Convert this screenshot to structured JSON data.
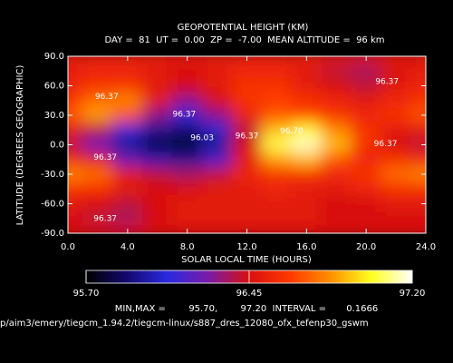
{
  "chart_data": {
    "type": "heatmap",
    "title": "GEOPOTENTIAL HEIGHT (KM)",
    "subtitle": "DAY =  81  UT =  0.00  ZP =  -7.00  MEAN ALTITUDE =  96 km",
    "xlabel": "SOLAR LOCAL TIME (HOURS)",
    "ylabel": "LATITUDE (DEGREES GEOGRAPHIC)",
    "x": [
      0,
      2,
      4,
      6,
      8,
      10,
      12,
      14,
      16,
      18,
      20,
      22,
      24
    ],
    "y": [
      90,
      75,
      60,
      45,
      30,
      15,
      0,
      -15,
      -30,
      -45,
      -60,
      -75,
      -90
    ],
    "z": [
      [
        96.5,
        96.5,
        96.5,
        96.5,
        96.5,
        96.5,
        96.5,
        96.5,
        96.5,
        96.5,
        96.5,
        96.5,
        96.5
      ],
      [
        96.5,
        96.55,
        96.55,
        96.5,
        96.45,
        96.5,
        96.55,
        96.55,
        96.5,
        96.4,
        96.35,
        96.45,
        96.5
      ],
      [
        96.55,
        96.6,
        96.6,
        96.5,
        96.45,
        96.5,
        96.6,
        96.6,
        96.5,
        96.45,
        96.4,
        96.5,
        96.55
      ],
      [
        96.6,
        96.75,
        96.8,
        96.5,
        96.3,
        96.45,
        96.6,
        96.65,
        96.6,
        96.55,
        96.5,
        96.55,
        96.6
      ],
      [
        96.7,
        96.85,
        96.7,
        96.3,
        96.1,
        96.3,
        96.55,
        96.7,
        96.65,
        96.6,
        96.55,
        96.6,
        96.7
      ],
      [
        96.5,
        96.4,
        96.1,
        95.95,
        95.9,
        96.05,
        96.4,
        96.9,
        97.0,
        96.8,
        96.6,
        96.5,
        96.5
      ],
      [
        96.4,
        96.2,
        95.95,
        95.8,
        95.75,
        95.95,
        96.45,
        97.05,
        97.15,
        96.9,
        96.6,
        96.45,
        96.4
      ],
      [
        96.55,
        96.5,
        96.2,
        96.0,
        95.95,
        96.15,
        96.5,
        96.85,
        96.9,
        96.7,
        96.55,
        96.6,
        96.55
      ],
      [
        96.8,
        96.75,
        96.5,
        96.4,
        96.35,
        96.4,
        96.55,
        96.6,
        96.6,
        96.55,
        96.6,
        96.75,
        96.8
      ],
      [
        96.6,
        96.6,
        96.5,
        96.45,
        96.45,
        96.5,
        96.5,
        96.55,
        96.5,
        96.5,
        96.55,
        96.6,
        96.6
      ],
      [
        96.5,
        96.45,
        96.4,
        96.45,
        96.5,
        96.5,
        96.5,
        96.5,
        96.5,
        96.45,
        96.45,
        96.5,
        96.5
      ],
      [
        96.45,
        96.4,
        96.35,
        96.45,
        96.5,
        96.5,
        96.5,
        96.5,
        96.5,
        96.45,
        96.45,
        96.45,
        96.45
      ],
      [
        96.45,
        96.45,
        96.45,
        96.45,
        96.45,
        96.45,
        96.45,
        96.45,
        96.45,
        96.45,
        96.45,
        96.45,
        96.45
      ]
    ],
    "xlim": [
      0,
      24
    ],
    "ylim": [
      -90,
      90
    ],
    "xticks": [
      {
        "value": 0,
        "label": "0.0"
      },
      {
        "value": 4,
        "label": "4.0"
      },
      {
        "value": 8,
        "label": "8.0"
      },
      {
        "value": 12,
        "label": "12.0"
      },
      {
        "value": 16,
        "label": "16.0"
      },
      {
        "value": 20,
        "label": "20.0"
      },
      {
        "value": 24,
        "label": "24.0"
      }
    ],
    "yticks": [
      {
        "value": 90,
        "label": "90.0"
      },
      {
        "value": 60,
        "label": "60.0"
      },
      {
        "value": 30,
        "label": "30.0"
      },
      {
        "value": 0,
        "label": "0.0"
      },
      {
        "value": -30,
        "label": "-30.0"
      },
      {
        "value": -60,
        "label": "-60.0"
      },
      {
        "value": -90,
        "label": "-90.0"
      }
    ],
    "zlim": [
      95.7,
      97.2
    ],
    "colorscale": [
      "#000000",
      "#14086e",
      "#2a2ae0",
      "#7a1aa8",
      "#d81010",
      "#ff3800",
      "#ff9000",
      "#ffff20",
      "#ffffff"
    ],
    "colorbar_ticks": [
      {
        "value": 95.7,
        "label": "95.70"
      },
      {
        "value": 96.45,
        "label": "96.45"
      },
      {
        "value": 97.2,
        "label": "97.20"
      }
    ],
    "contour_labels": [
      {
        "label": "96.37",
        "x": 2.6,
        "y": 49
      },
      {
        "label": "96.37",
        "x": 7.8,
        "y": 31
      },
      {
        "label": "96.03",
        "x": 9.0,
        "y": 7
      },
      {
        "label": "96.37",
        "x": 12.0,
        "y": 9
      },
      {
        "label": "96.70",
        "x": 15.0,
        "y": 14
      },
      {
        "label": "96.37",
        "x": 21.4,
        "y": 64
      },
      {
        "label": "96.37",
        "x": 21.3,
        "y": 1
      },
      {
        "label": "96.37",
        "x": 2.5,
        "y": -13
      },
      {
        "label": "96.37",
        "x": 2.5,
        "y": -75
      }
    ],
    "stats": "MIN,MAX =        95.70,        97.20  INTERVAL =       0.1666",
    "footer": "p/aim3/emery/tiegcm_1.94.2/tiegcm-linux/s887_dres_12080_ofx_tefenp30_gswm"
  }
}
